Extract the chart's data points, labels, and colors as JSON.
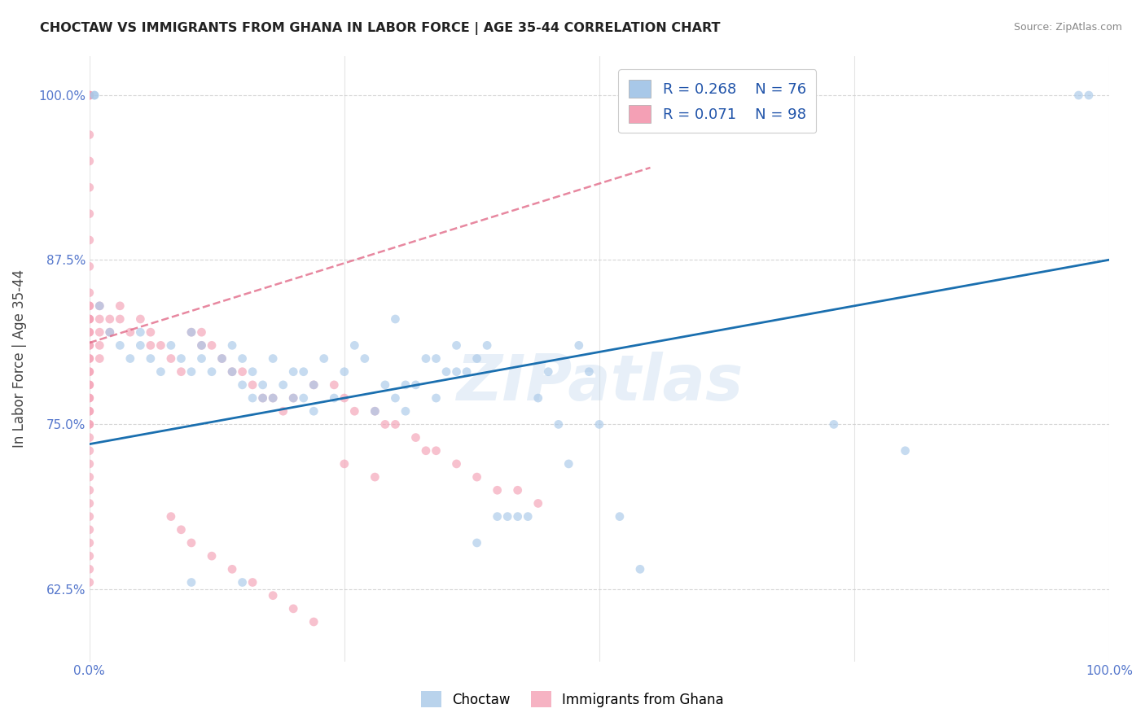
{
  "title": "CHOCTAW VS IMMIGRANTS FROM GHANA IN LABOR FORCE | AGE 35-44 CORRELATION CHART",
  "source": "Source: ZipAtlas.com",
  "ylabel": "In Labor Force | Age 35-44",
  "xlim": [
    0.0,
    1.0
  ],
  "ylim": [
    0.57,
    1.03
  ],
  "watermark": "ZIPatlas",
  "legend_r_blue": "R = 0.268",
  "legend_n_blue": "N = 76",
  "legend_r_pink": "R = 0.071",
  "legend_n_pink": "N = 98",
  "blue_color": "#a8c8e8",
  "pink_color": "#f4a0b5",
  "trendline_blue_color": "#1a6faf",
  "trendline_pink_color": "#e06080",
  "blue_scatter_x": [
    0.005,
    0.005,
    0.01,
    0.02,
    0.03,
    0.04,
    0.05,
    0.05,
    0.06,
    0.07,
    0.08,
    0.09,
    0.1,
    0.1,
    0.11,
    0.11,
    0.12,
    0.13,
    0.14,
    0.14,
    0.15,
    0.15,
    0.16,
    0.16,
    0.17,
    0.17,
    0.18,
    0.18,
    0.19,
    0.2,
    0.2,
    0.21,
    0.21,
    0.22,
    0.22,
    0.23,
    0.24,
    0.25,
    0.26,
    0.27,
    0.28,
    0.29,
    0.3,
    0.3,
    0.31,
    0.31,
    0.32,
    0.33,
    0.34,
    0.34,
    0.35,
    0.36,
    0.36,
    0.37,
    0.38,
    0.38,
    0.39,
    0.4,
    0.41,
    0.42,
    0.43,
    0.44,
    0.45,
    0.46,
    0.47,
    0.48,
    0.49,
    0.5,
    0.52,
    0.54,
    0.73,
    0.8,
    0.97,
    0.98,
    0.1,
    0.15
  ],
  "blue_scatter_y": [
    1.0,
    1.0,
    0.84,
    0.82,
    0.81,
    0.8,
    0.81,
    0.82,
    0.8,
    0.79,
    0.81,
    0.8,
    0.82,
    0.79,
    0.81,
    0.8,
    0.79,
    0.8,
    0.79,
    0.81,
    0.8,
    0.78,
    0.77,
    0.79,
    0.78,
    0.77,
    0.8,
    0.77,
    0.78,
    0.79,
    0.77,
    0.77,
    0.79,
    0.76,
    0.78,
    0.8,
    0.77,
    0.79,
    0.81,
    0.8,
    0.76,
    0.78,
    0.77,
    0.83,
    0.76,
    0.78,
    0.78,
    0.8,
    0.8,
    0.77,
    0.79,
    0.81,
    0.79,
    0.79,
    0.66,
    0.8,
    0.81,
    0.68,
    0.68,
    0.68,
    0.68,
    0.77,
    0.79,
    0.75,
    0.72,
    0.81,
    0.79,
    0.75,
    0.68,
    0.64,
    0.75,
    0.73,
    1.0,
    1.0,
    0.63,
    0.63
  ],
  "pink_scatter_x": [
    0.0,
    0.0,
    0.0,
    0.0,
    0.0,
    0.0,
    0.0,
    0.0,
    0.0,
    0.0,
    0.0,
    0.0,
    0.0,
    0.0,
    0.0,
    0.0,
    0.0,
    0.0,
    0.0,
    0.0,
    0.0,
    0.0,
    0.0,
    0.0,
    0.0,
    0.0,
    0.0,
    0.0,
    0.0,
    0.0,
    0.0,
    0.0,
    0.0,
    0.0,
    0.0,
    0.0,
    0.0,
    0.0,
    0.0,
    0.0,
    0.0,
    0.0,
    0.0,
    0.0,
    0.01,
    0.01,
    0.01,
    0.01,
    0.01,
    0.02,
    0.02,
    0.03,
    0.03,
    0.04,
    0.05,
    0.06,
    0.06,
    0.07,
    0.08,
    0.09,
    0.1,
    0.11,
    0.11,
    0.12,
    0.13,
    0.14,
    0.15,
    0.16,
    0.17,
    0.18,
    0.19,
    0.2,
    0.22,
    0.24,
    0.25,
    0.26,
    0.28,
    0.29,
    0.3,
    0.32,
    0.33,
    0.34,
    0.36,
    0.38,
    0.4,
    0.42,
    0.44,
    0.08,
    0.09,
    0.1,
    0.12,
    0.14,
    0.16,
    0.18,
    0.2,
    0.22,
    0.25,
    0.28
  ],
  "pink_scatter_y": [
    1.0,
    1.0,
    1.0,
    1.0,
    0.97,
    0.95,
    0.93,
    0.91,
    0.89,
    0.87,
    0.85,
    0.83,
    0.83,
    0.82,
    0.81,
    0.8,
    0.79,
    0.78,
    0.77,
    0.76,
    0.75,
    0.74,
    0.73,
    0.72,
    0.71,
    0.7,
    0.69,
    0.68,
    0.67,
    0.66,
    0.65,
    0.64,
    0.63,
    0.84,
    0.83,
    0.82,
    0.81,
    0.8,
    0.79,
    0.78,
    0.77,
    0.76,
    0.75,
    0.84,
    0.84,
    0.83,
    0.82,
    0.81,
    0.8,
    0.83,
    0.82,
    0.84,
    0.83,
    0.82,
    0.83,
    0.82,
    0.81,
    0.81,
    0.8,
    0.79,
    0.82,
    0.82,
    0.81,
    0.81,
    0.8,
    0.79,
    0.79,
    0.78,
    0.77,
    0.77,
    0.76,
    0.77,
    0.78,
    0.78,
    0.77,
    0.76,
    0.76,
    0.75,
    0.75,
    0.74,
    0.73,
    0.73,
    0.72,
    0.71,
    0.7,
    0.7,
    0.69,
    0.68,
    0.67,
    0.66,
    0.65,
    0.64,
    0.63,
    0.62,
    0.61,
    0.6,
    0.72,
    0.71
  ],
  "blue_trend_x": [
    0.0,
    1.0
  ],
  "blue_trend_y": [
    0.735,
    0.875
  ],
  "pink_trend_x": [
    0.0,
    0.55
  ],
  "pink_trend_y": [
    0.812,
    0.945
  ],
  "y_ticks": [
    0.625,
    0.75,
    0.875,
    1.0
  ],
  "y_tick_labels": [
    "62.5%",
    "75.0%",
    "87.5%",
    "100.0%"
  ],
  "x_ticks": [
    0.0,
    0.25,
    0.5,
    0.75,
    1.0
  ],
  "x_tick_labels": [
    "0.0%",
    "",
    "",
    "",
    "100.0%"
  ]
}
